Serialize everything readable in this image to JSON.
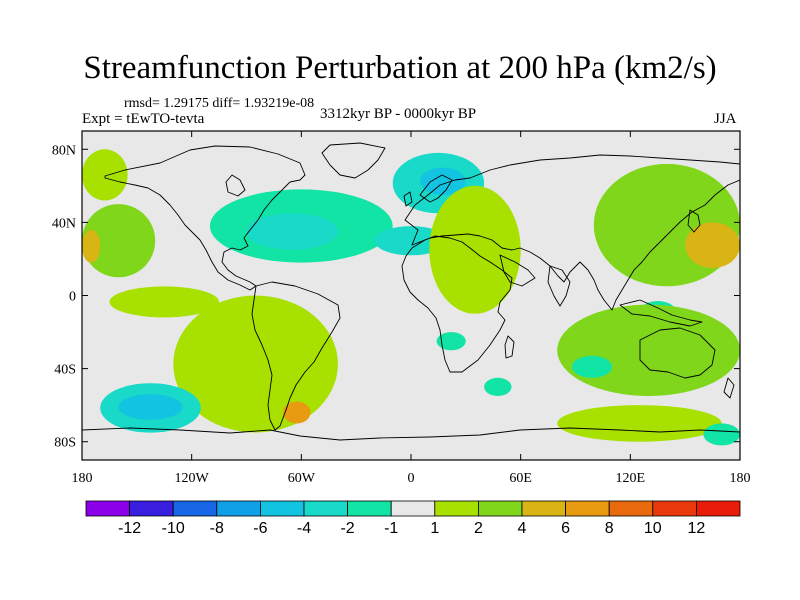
{
  "title": "Streamfunction Perturbation at 200 hPa (km2/s)",
  "stats": "rmsd= 1.29175 diff= 1.93219e-08",
  "expt": "Expt = tEwTO-tevta",
  "period": "3312kyr BP - 0000kyr BP",
  "season": "JJA",
  "chart_data": {
    "type": "heatmap",
    "projection": "cylindrical equidistant",
    "xlim": [
      -180,
      180
    ],
    "ylim": [
      -90,
      90
    ],
    "x_ticks": [
      {
        "value": -180,
        "label": "180"
      },
      {
        "value": -120,
        "label": "120W"
      },
      {
        "value": -60,
        "label": "60W"
      },
      {
        "value": 0,
        "label": "0"
      },
      {
        "value": 60,
        "label": "60E"
      },
      {
        "value": 120,
        "label": "120E"
      },
      {
        "value": 180,
        "label": "180"
      }
    ],
    "y_ticks": [
      {
        "value": 80,
        "label": "80N"
      },
      {
        "value": 40,
        "label": "40N"
      },
      {
        "value": 0,
        "label": "0"
      },
      {
        "value": -40,
        "label": "40S"
      },
      {
        "value": -80,
        "label": "80S"
      }
    ],
    "colorbar": {
      "boundaries": [
        -12,
        -10,
        -8,
        -6,
        -4,
        -2,
        -1,
        1,
        2,
        4,
        6,
        8,
        10,
        12
      ],
      "labels": [
        "-12",
        "-10",
        "-8",
        "-6",
        "-4",
        "-2",
        "-1",
        "1",
        "2",
        "4",
        "6",
        "8",
        "10",
        "12"
      ],
      "colors": [
        "#8b00e8",
        "#3a1ee0",
        "#1766e6",
        "#0fa0e8",
        "#12c4e2",
        "#19d9c8",
        "#12e4a6",
        "#e8e8e8",
        "#a8e000",
        "#7fd61a",
        "#d8b414",
        "#e89a10",
        "#e86a0c",
        "#e8380c",
        "#e81c08"
      ]
    },
    "anomaly_regions": [
      {
        "name": "north-america-negative",
        "lon": [
          -110,
          -10
        ],
        "lat": [
          18,
          58
        ],
        "value": -2,
        "level": 6
      },
      {
        "name": "north-america-core",
        "lon": [
          -90,
          -40
        ],
        "lat": [
          25,
          45
        ],
        "value": -3,
        "level": 5
      },
      {
        "name": "north-atlantic-core",
        "lon": [
          -20,
          20
        ],
        "lat": [
          22,
          38
        ],
        "value": -3,
        "level": 5
      },
      {
        "name": "scandinavia-negative",
        "lon": [
          -10,
          40
        ],
        "lat": [
          45,
          78
        ],
        "value": -3,
        "level": 5
      },
      {
        "name": "scandinavia-core",
        "lon": [
          5,
          30
        ],
        "lat": [
          55,
          70
        ],
        "value": -4,
        "level": 4
      },
      {
        "name": "west-pacific-positive",
        "lon": [
          -180,
          -140
        ],
        "lat": [
          10,
          50
        ],
        "value": 2,
        "level": 9
      },
      {
        "name": "west-pacific-core",
        "lon": [
          -180,
          -170
        ],
        "lat": [
          18,
          36
        ],
        "value": 4,
        "level": 10
      },
      {
        "name": "north-pacific-positive",
        "lon": [
          -180,
          -155
        ],
        "lat": [
          52,
          80
        ],
        "value": 1.5,
        "level": 8
      },
      {
        "name": "east-pacific-positive",
        "lon": [
          -165,
          -105
        ],
        "lat": [
          -12,
          5
        ],
        "value": 1.5,
        "level": 8
      },
      {
        "name": "south-america-positive",
        "lon": [
          -130,
          -40
        ],
        "lat": [
          -75,
          0
        ],
        "value": 2,
        "level": 8
      },
      {
        "name": "south-america-core",
        "lon": [
          -70,
          -55
        ],
        "lat": [
          -70,
          -58
        ],
        "value": 5,
        "level": 11
      },
      {
        "name": "south-pacific-negative",
        "lon": [
          -170,
          -115
        ],
        "lat": [
          -75,
          -48
        ],
        "value": -4,
        "level": 5
      },
      {
        "name": "south-pacific-core",
        "lon": [
          -160,
          -125
        ],
        "lat": [
          -68,
          -54
        ],
        "value": -5,
        "level": 4
      },
      {
        "name": "africa-positive",
        "lon": [
          10,
          60
        ],
        "lat": [
          -10,
          60
        ],
        "value": 2,
        "level": 8
      },
      {
        "name": "south-atlantic-negative",
        "lon": [
          14,
          30
        ],
        "lat": [
          -30,
          -20
        ],
        "value": -2,
        "level": 6
      },
      {
        "name": "east-asia-positive",
        "lon": [
          100,
          180
        ],
        "lat": [
          5,
          72
        ],
        "value": 2.5,
        "level": 9
      },
      {
        "name": "east-asia-core",
        "lon": [
          150,
          180
        ],
        "lat": [
          15,
          40
        ],
        "value": 4,
        "level": 10
      },
      {
        "name": "indian-ocean-negative",
        "lon": [
          125,
          145
        ],
        "lat": [
          -15,
          -3
        ],
        "value": -2,
        "level": 6
      },
      {
        "name": "australia-positive",
        "lon": [
          80,
          180
        ],
        "lat": [
          -55,
          -5
        ],
        "value": 2,
        "level": 9
      },
      {
        "name": "south-indian-negative",
        "lon": [
          88,
          110
        ],
        "lat": [
          -45,
          -33
        ],
        "value": -2,
        "level": 6
      },
      {
        "name": "southern-ocean-negative",
        "lon": [
          40,
          55
        ],
        "lat": [
          -55,
          -45
        ],
        "value": -2,
        "level": 6
      },
      {
        "name": "antarctic-positive",
        "lon": [
          80,
          170
        ],
        "lat": [
          -80,
          -60
        ],
        "value": 2,
        "level": 8
      },
      {
        "name": "antarctic-negative",
        "lon": [
          160,
          180
        ],
        "lat": [
          -82,
          -70
        ],
        "value": -2,
        "level": 6
      }
    ]
  }
}
